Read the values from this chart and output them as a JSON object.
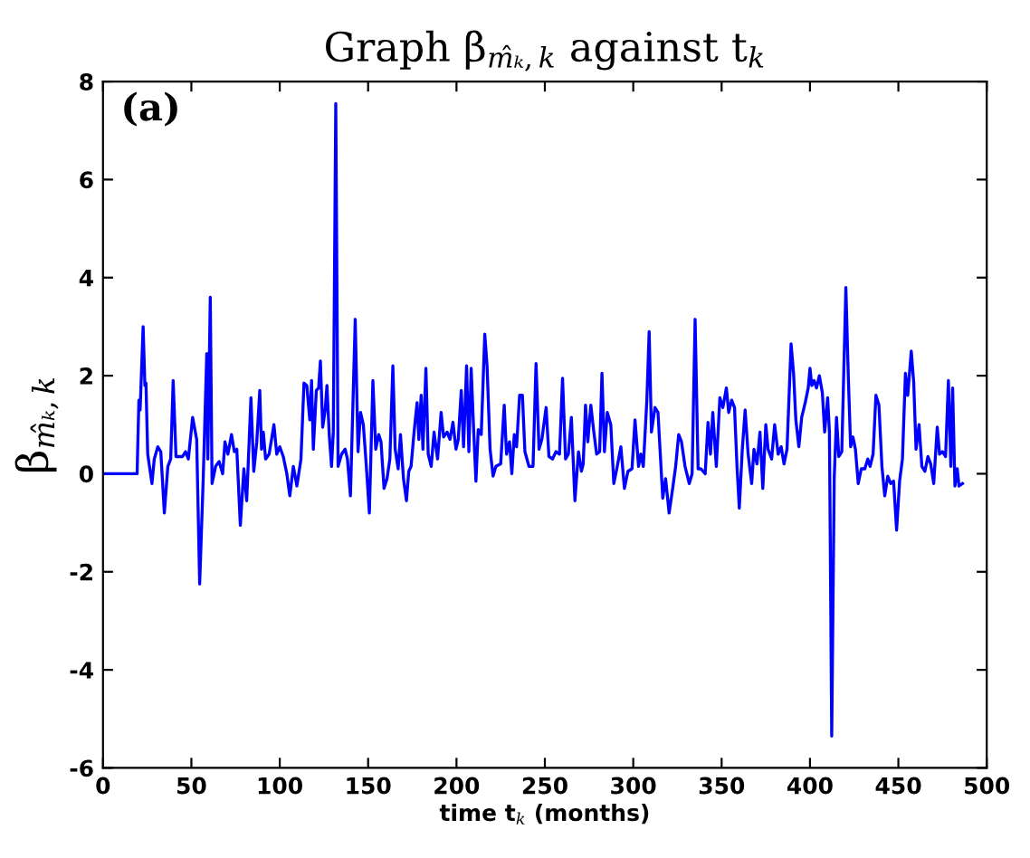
{
  "chart_data": {
    "type": "line",
    "title": "Graph β$_{m̂ₖ,k}$ against t$_{k}$",
    "xlabel": "time t$_{k}$ (months)",
    "ylabel": "β$_{m̂ₖ,k}$",
    "annotations": [
      "(a)"
    ],
    "xlim": [
      0,
      500
    ],
    "ylim": [
      -6,
      8
    ],
    "xticks": [
      0,
      50,
      100,
      150,
      200,
      250,
      300,
      350,
      400,
      450,
      500
    ],
    "yticks": [
      -6,
      -4,
      -2,
      0,
      2,
      4,
      6,
      8
    ],
    "grid": false,
    "marker": "none",
    "line_style": "solid",
    "series": [
      {
        "color": "#0000ff",
        "x": [
          0,
          19.3,
          20.3,
          21,
          22.7,
          23.7,
          24.3,
          25.3,
          27.7,
          29,
          31,
          32.7,
          34.7,
          36.7,
          38.3,
          39.7,
          41.3,
          45,
          46.7,
          48.3,
          50.7,
          53,
          54.7,
          56.7,
          58.7,
          59.3,
          60.7,
          61.7,
          63.7,
          65.7,
          67.7,
          69,
          70.7,
          72.7,
          74.3,
          75.7,
          77.7,
          79.7,
          81.3,
          83.7,
          85.3,
          87,
          88.7,
          89.7,
          90.7,
          92,
          94,
          96.7,
          98.3,
          100,
          102,
          104,
          105.7,
          107.7,
          109.7,
          112,
          113.7,
          115.3,
          117,
          118,
          119,
          120.7,
          122,
          123,
          124.3,
          125.7,
          126.7,
          128,
          129.3,
          130.3,
          131.7,
          133,
          135,
          137,
          138.3,
          140,
          142.7,
          144.3,
          145.7,
          147.3,
          149,
          150.7,
          152.7,
          154.3,
          156,
          157.3,
          159,
          160.7,
          162.3,
          164,
          165.3,
          167,
          168.3,
          170,
          171.7,
          173,
          174.3,
          176,
          177.7,
          178.7,
          180,
          181,
          182.7,
          184,
          185.7,
          187.3,
          189.3,
          191.3,
          192.7,
          194.7,
          196.3,
          198,
          199.7,
          201,
          202.7,
          204,
          205.7,
          207,
          208.3,
          209.7,
          211,
          212.3,
          214,
          216,
          217.3,
          219,
          220.7,
          222.3,
          225,
          227,
          228.3,
          230,
          231.3,
          232.7,
          234,
          235.7,
          237.3,
          238.7,
          241,
          243.3,
          245,
          246.7,
          248.3,
          250.7,
          252.3,
          254.3,
          256.3,
          258.3,
          260,
          261.7,
          263.3,
          265,
          267,
          269,
          270.7,
          271.7,
          273,
          274.3,
          276,
          277.7,
          279.3,
          281,
          282.3,
          283.7,
          285.3,
          287.3,
          289,
          290.7,
          293,
          295,
          297,
          299.3,
          301,
          303,
          304.3,
          305.7,
          307.7,
          309,
          310.3,
          312.3,
          314,
          315.3,
          316.7,
          318.3,
          320.3,
          322.3,
          324,
          325.7,
          327.3,
          329.3,
          331.7,
          333.3,
          335,
          336.7,
          338.3,
          340.7,
          342.3,
          343.7,
          345,
          347,
          349,
          350.7,
          352.7,
          354,
          355.7,
          357.3,
          358.7,
          360,
          361.7,
          363.3,
          365,
          367,
          368.3,
          370,
          371.7,
          373.3,
          375,
          376.3,
          378.3,
          380,
          382,
          383.7,
          385.3,
          387,
          389.3,
          390.7,
          392,
          393.7,
          395.3,
          397.3,
          399,
          400,
          401,
          402.3,
          403.7,
          405.3,
          407,
          408.3,
          410,
          411,
          412.3,
          413.7,
          415,
          416.3,
          418,
          420.3,
          421.7,
          423,
          424.3,
          425.7,
          427.3,
          429,
          431,
          432.7,
          434,
          435.7,
          437.3,
          439,
          440.7,
          442.3,
          444,
          445.7,
          447.3,
          449,
          450.7,
          452.3,
          454,
          455.3,
          457.3,
          458.7,
          460,
          461.7,
          463.3,
          465,
          466.7,
          468.3,
          470,
          472,
          473.3,
          475,
          476.7,
          478.3,
          479.7,
          480.7,
          482,
          483.3,
          484.3,
          486.3
        ],
        "values": [
          0,
          0,
          1.5,
          1.3,
          3.0,
          1.8,
          1.85,
          0.4,
          -0.2,
          0.3,
          0.55,
          0.45,
          -0.8,
          0.15,
          0.3,
          1.9,
          0.35,
          0.35,
          0.45,
          0.3,
          1.15,
          0.7,
          -2.25,
          -0.1,
          2.45,
          0.3,
          3.6,
          -0.2,
          0.15,
          0.25,
          0,
          0.65,
          0.4,
          0.8,
          0.45,
          0.5,
          -1.05,
          0.1,
          -0.55,
          1.55,
          0.05,
          0.65,
          1.7,
          0.5,
          0.85,
          0.3,
          0.4,
          1.0,
          0.4,
          0.55,
          0.35,
          0,
          -0.45,
          0.15,
          -0.25,
          0.3,
          1.85,
          1.8,
          1.1,
          1.9,
          0.5,
          1.7,
          1.75,
          2.3,
          0.95,
          1.3,
          1.8,
          0.8,
          0.15,
          0.85,
          7.55,
          0.15,
          0.4,
          0.5,
          0.3,
          -0.45,
          3.15,
          0.45,
          1.25,
          1.0,
          0.15,
          -0.8,
          1.9,
          0.5,
          0.8,
          0.65,
          -0.3,
          -0.1,
          0.3,
          2.2,
          0.5,
          0.1,
          0.8,
          -0.1,
          -0.55,
          0.05,
          0.15,
          0.85,
          1.45,
          0.7,
          1.6,
          0.5,
          2.15,
          0.4,
          0.15,
          0.85,
          0.3,
          1.25,
          0.75,
          0.85,
          0.7,
          1.05,
          0.5,
          0.7,
          1.7,
          0.55,
          2.2,
          0.45,
          2.15,
          0.9,
          -0.15,
          0.9,
          0.8,
          2.85,
          2.2,
          0.5,
          -0.05,
          0.15,
          0.2,
          1.4,
          0.4,
          0.65,
          0,
          0.8,
          0.55,
          1.6,
          1.6,
          0.45,
          0.15,
          0.15,
          2.25,
          0.5,
          0.7,
          1.35,
          0.35,
          0.3,
          0.45,
          0.4,
          1.95,
          0.3,
          0.4,
          1.15,
          -0.55,
          0.45,
          0.05,
          0.2,
          1.4,
          0.65,
          1.4,
          0.85,
          0.4,
          0.45,
          2.05,
          0.45,
          1.25,
          1.0,
          -0.2,
          0.1,
          0.55,
          -0.3,
          0.05,
          0.1,
          1.1,
          0.15,
          0.4,
          0.15,
          1.5,
          2.9,
          0.85,
          1.35,
          1.25,
          0.4,
          -0.5,
          -0.1,
          -0.8,
          -0.3,
          0.15,
          0.8,
          0.65,
          0.15,
          -0.2,
          0,
          3.15,
          0.1,
          0.1,
          0,
          1.05,
          0.4,
          1.25,
          0.15,
          1.55,
          1.35,
          1.75,
          1.25,
          1.5,
          1.35,
          0.15,
          -0.7,
          0.5,
          1.3,
          0.4,
          -0.2,
          0.5,
          0.2,
          0.85,
          -0.3,
          1.0,
          0.5,
          0.3,
          1.0,
          0.4,
          0.55,
          0.2,
          0.5,
          2.65,
          2.05,
          1.1,
          0.55,
          1.15,
          1.45,
          1.75,
          2.15,
          1.8,
          1.9,
          1.75,
          2.0,
          1.65,
          0.85,
          1.55,
          0.85,
          -5.35,
          -0.1,
          1.15,
          0.35,
          0.45,
          3.8,
          1.95,
          0.55,
          0.75,
          0.5,
          -0.2,
          0.1,
          0.1,
          0.3,
          0.15,
          0.4,
          1.6,
          1.4,
          0.15,
          -0.45,
          -0.05,
          -0.2,
          -0.15,
          -1.15,
          -0.15,
          0.3,
          2.05,
          1.6,
          2.5,
          1.85,
          0.5,
          1.0,
          0.15,
          0.05,
          0.35,
          0.2,
          -0.2,
          0.95,
          0.4,
          0.45,
          0.35,
          1.9,
          0.15,
          1.75,
          -0.25,
          0.1,
          -0.25,
          -0.2
        ]
      }
    ]
  }
}
